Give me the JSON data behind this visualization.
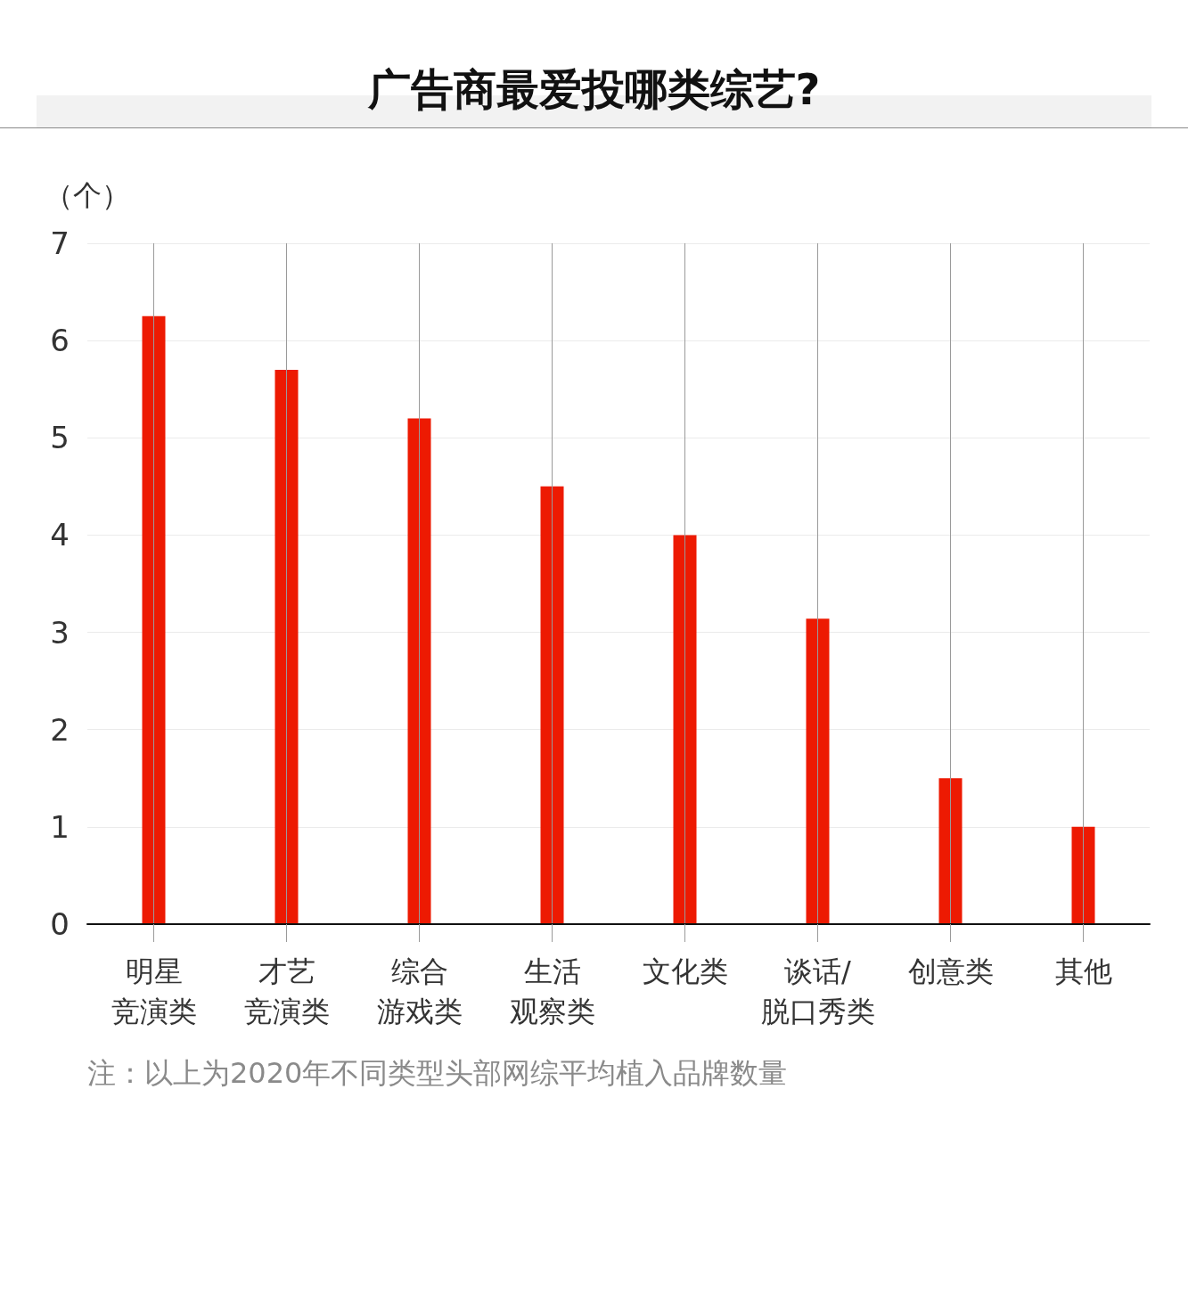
{
  "chart_data": {
    "type": "bar",
    "title": "广告商最爱投哪类综艺?",
    "ylabel": "（个）",
    "categories": [
      "明星竞演类",
      "才艺竞演类",
      "综合游戏类",
      "生活观察类",
      "文化类",
      "谈话/脱口秀类",
      "创意类",
      "其他"
    ],
    "values": [
      6.25,
      5.7,
      5.2,
      4.5,
      4,
      3.14,
      1.5,
      1
    ],
    "color": "#ed1a02",
    "ylim": [
      0,
      7
    ],
    "yticks": [
      0,
      1,
      2,
      3,
      4,
      5,
      6,
      7
    ],
    "grid": true,
    "annotations": [
      "注：以上为2020年不同类型头部网综平均植入品牌数量"
    ]
  }
}
